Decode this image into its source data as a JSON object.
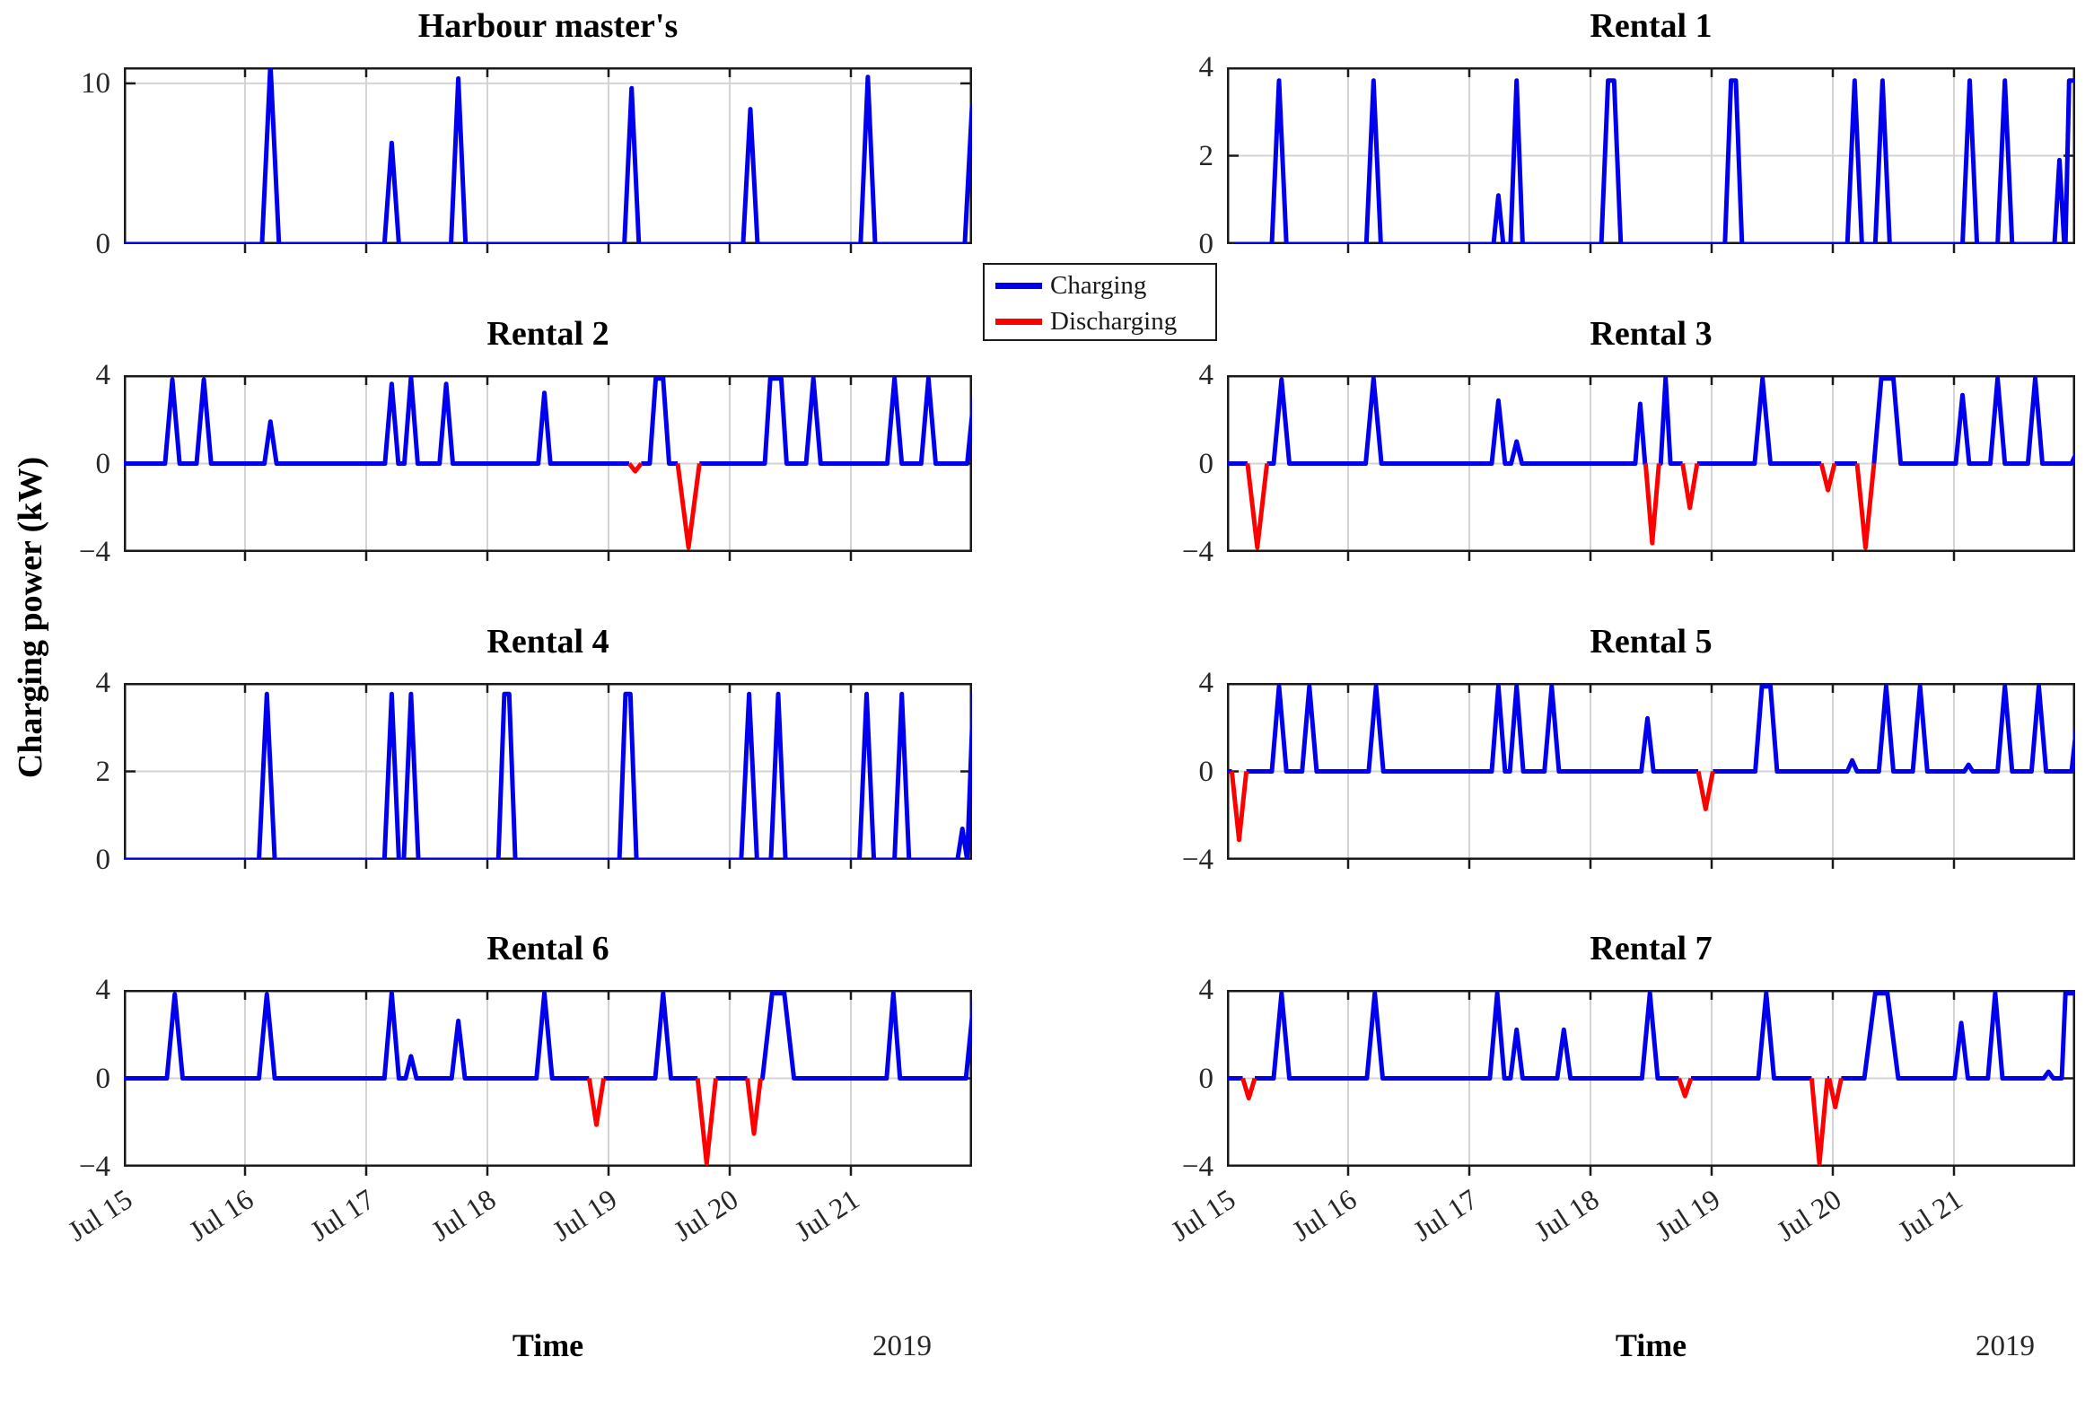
{
  "figure": {
    "ylabel": "Charging power (kW)",
    "xlabel": "Time",
    "year_label": "2019"
  },
  "legend": {
    "items": [
      {
        "label": "Charging",
        "color": "#0000ee"
      },
      {
        "label": "Discharging",
        "color": "#ff0000"
      }
    ]
  },
  "colors": {
    "charging": "#0000ee",
    "discharging": "#ff0000",
    "axis": "#1a1a1a",
    "grid": "#d4d4d4",
    "text": "#262626"
  },
  "x_axis": {
    "tick_labels": [
      "Jul 15",
      "Jul 16",
      "Jul 17",
      "Jul 18",
      "Jul 19",
      "Jul 20",
      "Jul 21"
    ],
    "range_days": [
      0,
      7
    ],
    "unit": "days since Jul 15, 2019"
  },
  "chart_data": [
    {
      "type": "line",
      "title": "Harbour master's",
      "row": 0,
      "col": 0,
      "ylim": [
        0,
        11
      ],
      "yticks": [
        {
          "v": 0,
          "label": "0"
        },
        {
          "v": 10,
          "label": "10"
        }
      ],
      "series_units": "kW",
      "events": [
        [
          1.21,
          11.2,
          0.14
        ],
        [
          2.21,
          6.3,
          0.12
        ],
        [
          2.76,
          10.3,
          0.12
        ],
        [
          4.19,
          9.7,
          0.12
        ],
        [
          5.17,
          8.4,
          0.12
        ],
        [
          6.14,
          10.4,
          0.12
        ],
        [
          7.0,
          8.6,
          0.12
        ]
      ]
    },
    {
      "type": "line",
      "title": "Rental 1",
      "row": 0,
      "col": 1,
      "ylim": [
        0,
        4
      ],
      "yticks": [
        {
          "v": 0,
          "label": "0"
        },
        {
          "v": 2,
          "label": "2"
        },
        {
          "v": 4,
          "label": "4"
        }
      ],
      "series_units": "kW",
      "events": [
        [
          0.03,
          -0.25,
          0.06
        ],
        [
          0.43,
          3.7,
          0.12
        ],
        [
          1.21,
          3.7,
          0.12
        ],
        [
          2.24,
          1.1,
          0.08
        ],
        [
          2.39,
          3.7,
          0.1
        ],
        [
          3.17,
          3.7,
          0.16,
          0.05
        ],
        [
          4.18,
          3.7,
          0.14,
          0.04
        ],
        [
          5.18,
          3.7,
          0.12
        ],
        [
          5.41,
          3.7,
          0.12
        ],
        [
          6.13,
          3.7,
          0.12
        ],
        [
          6.42,
          3.7,
          0.12
        ],
        [
          6.87,
          1.9,
          0.08
        ],
        [
          7.0,
          3.7,
          0.16,
          0.1
        ]
      ]
    },
    {
      "type": "line",
      "title": "Rental 2",
      "row": 1,
      "col": 0,
      "ylim": [
        -4,
        4
      ],
      "yticks": [
        {
          "v": -4,
          "label": "−4"
        },
        {
          "v": 0,
          "label": "0"
        },
        {
          "v": 4,
          "label": "4"
        }
      ],
      "series_units": "kW",
      "events": [
        [
          0.4,
          3.8,
          0.12
        ],
        [
          0.66,
          3.8,
          0.12
        ],
        [
          1.21,
          1.9,
          0.1
        ],
        [
          2.21,
          3.6,
          0.11
        ],
        [
          2.37,
          3.9,
          0.11
        ],
        [
          2.66,
          3.6,
          0.11
        ],
        [
          3.47,
          3.2,
          0.1
        ],
        [
          4.22,
          -0.35,
          0.1
        ],
        [
          4.42,
          3.85,
          0.16,
          0.06
        ],
        [
          4.66,
          -3.8,
          0.18
        ],
        [
          5.38,
          3.85,
          0.18,
          0.09
        ],
        [
          5.69,
          3.85,
          0.12
        ],
        [
          6.36,
          3.85,
          0.12
        ],
        [
          6.64,
          3.85,
          0.12
        ],
        [
          7.03,
          3.85,
          0.14
        ]
      ]
    },
    {
      "type": "line",
      "title": "Rental 3",
      "row": 1,
      "col": 1,
      "ylim": [
        -4,
        4
      ],
      "yticks": [
        {
          "v": -4,
          "label": "−4"
        },
        {
          "v": 0,
          "label": "0"
        },
        {
          "v": 4,
          "label": "4"
        }
      ],
      "series_units": "kW",
      "events": [
        [
          0.25,
          -3.8,
          0.16
        ],
        [
          0.45,
          3.8,
          0.13
        ],
        [
          1.21,
          3.85,
          0.13
        ],
        [
          2.24,
          2.85,
          0.11
        ],
        [
          2.39,
          1.0,
          0.09
        ],
        [
          3.41,
          2.7,
          0.08
        ],
        [
          3.51,
          -3.6,
          0.11
        ],
        [
          3.62,
          3.85,
          0.08
        ],
        [
          3.82,
          -2.0,
          0.12
        ],
        [
          4.42,
          3.85,
          0.13
        ],
        [
          4.96,
          -1.2,
          0.11
        ],
        [
          5.27,
          -3.8,
          0.14
        ],
        [
          5.45,
          3.85,
          0.22,
          0.1
        ],
        [
          6.07,
          3.1,
          0.11
        ],
        [
          6.36,
          3.85,
          0.12
        ],
        [
          6.67,
          3.85,
          0.12
        ],
        [
          7.02,
          0.6,
          0.1
        ]
      ]
    },
    {
      "type": "line",
      "title": "Rental 4",
      "row": 2,
      "col": 0,
      "ylim": [
        0,
        4
      ],
      "yticks": [
        {
          "v": 0,
          "label": "0"
        },
        {
          "v": 2,
          "label": "2"
        },
        {
          "v": 4,
          "label": "4"
        }
      ],
      "series_units": "kW",
      "events": [
        [
          1.18,
          3.75,
          0.13
        ],
        [
          2.21,
          3.75,
          0.12
        ],
        [
          2.37,
          3.75,
          0.12
        ],
        [
          3.16,
          3.75,
          0.14,
          0.04
        ],
        [
          4.16,
          3.75,
          0.14,
          0.04
        ],
        [
          5.16,
          3.75,
          0.13
        ],
        [
          5.4,
          3.75,
          0.12
        ],
        [
          6.13,
          3.75,
          0.12
        ],
        [
          6.42,
          3.75,
          0.12
        ],
        [
          6.92,
          0.7,
          0.08
        ],
        [
          7.01,
          3.75,
          0.1
        ]
      ]
    },
    {
      "type": "line",
      "title": "Rental 5",
      "row": 2,
      "col": 1,
      "ylim": [
        -4,
        4
      ],
      "yticks": [
        {
          "v": -4,
          "label": "−4"
        },
        {
          "v": 0,
          "label": "0"
        },
        {
          "v": 4,
          "label": "4"
        }
      ],
      "series_units": "kW",
      "events": [
        [
          0.1,
          -3.1,
          0.12
        ],
        [
          0.43,
          3.85,
          0.12
        ],
        [
          0.68,
          3.85,
          0.12
        ],
        [
          1.23,
          3.85,
          0.12
        ],
        [
          2.24,
          3.85,
          0.11
        ],
        [
          2.39,
          3.85,
          0.11
        ],
        [
          2.68,
          3.85,
          0.12
        ],
        [
          3.47,
          2.4,
          0.1
        ],
        [
          3.95,
          -1.7,
          0.12
        ],
        [
          4.45,
          3.85,
          0.18,
          0.07
        ],
        [
          5.16,
          0.5,
          0.08
        ],
        [
          5.44,
          3.85,
          0.12
        ],
        [
          5.72,
          3.85,
          0.12
        ],
        [
          6.12,
          0.3,
          0.07
        ],
        [
          6.42,
          3.85,
          0.12
        ],
        [
          6.7,
          3.85,
          0.12
        ],
        [
          7.03,
          3.0,
          0.12
        ]
      ]
    },
    {
      "type": "line",
      "title": "Rental 6",
      "row": 3,
      "col": 0,
      "ylim": [
        -4,
        4
      ],
      "yticks": [
        {
          "v": -4,
          "label": "−4"
        },
        {
          "v": 0,
          "label": "0"
        },
        {
          "v": 4,
          "label": "4"
        }
      ],
      "series_units": "kW",
      "events": [
        [
          0.42,
          3.8,
          0.13
        ],
        [
          1.18,
          3.8,
          0.13
        ],
        [
          2.21,
          3.85,
          0.12
        ],
        [
          2.37,
          1.0,
          0.09
        ],
        [
          2.76,
          2.6,
          0.11
        ],
        [
          3.47,
          3.85,
          0.13
        ],
        [
          3.9,
          -2.1,
          0.12
        ],
        [
          4.45,
          3.85,
          0.13
        ],
        [
          4.81,
          -3.85,
          0.15
        ],
        [
          5.2,
          -2.5,
          0.11
        ],
        [
          5.4,
          3.85,
          0.26,
          0.1
        ],
        [
          6.35,
          3.85,
          0.11
        ],
        [
          7.02,
          3.85,
          0.14
        ]
      ]
    },
    {
      "type": "line",
      "title": "Rental 7",
      "row": 3,
      "col": 1,
      "ylim": [
        -4,
        4
      ],
      "yticks": [
        {
          "v": -4,
          "label": "−4"
        },
        {
          "v": 0,
          "label": "0"
        },
        {
          "v": 4,
          "label": "4"
        }
      ],
      "series_units": "kW",
      "events": [
        [
          0.18,
          -0.9,
          0.1
        ],
        [
          0.45,
          3.85,
          0.13
        ],
        [
          1.22,
          3.85,
          0.13
        ],
        [
          2.23,
          3.85,
          0.12
        ],
        [
          2.39,
          2.2,
          0.1
        ],
        [
          2.78,
          2.2,
          0.11
        ],
        [
          3.49,
          3.85,
          0.13
        ],
        [
          3.78,
          -0.8,
          0.1
        ],
        [
          4.45,
          3.85,
          0.13
        ],
        [
          4.89,
          -3.85,
          0.13
        ],
        [
          5.02,
          -1.3,
          0.1
        ],
        [
          5.4,
          3.85,
          0.28,
          0.1
        ],
        [
          6.06,
          2.5,
          0.11
        ],
        [
          6.34,
          3.85,
          0.12
        ],
        [
          6.78,
          0.3,
          0.08
        ],
        [
          6.97,
          3.85,
          0.16,
          0.1
        ]
      ]
    }
  ]
}
